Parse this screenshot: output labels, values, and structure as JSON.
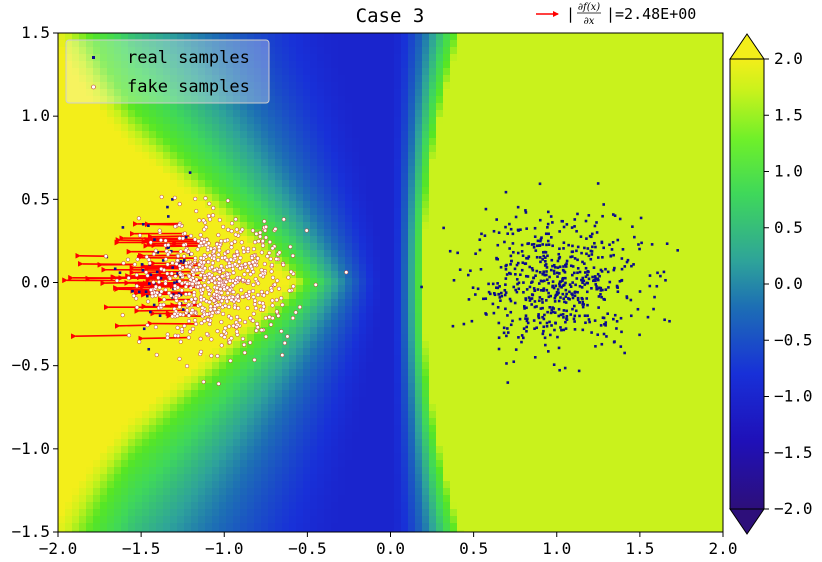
{
  "chart_data": {
    "type": "scatter",
    "title": "Case 3",
    "xlabel": "",
    "ylabel": "",
    "xlim": [
      -2.0,
      2.0
    ],
    "ylim": [
      -1.5,
      1.5
    ],
    "x_ticks": [
      "−2.0",
      "−1.5",
      "−1.0",
      "−0.5",
      "0.0",
      "0.5",
      "1.0",
      "1.5",
      "2.0"
    ],
    "y_ticks": [
      "1.5",
      "1.0",
      "0.5",
      "0.0",
      "−0.5",
      "−1.0",
      "−1.5"
    ],
    "grid": false,
    "legend": {
      "placement": "top-left",
      "entries": [
        "real samples",
        "fake samples"
      ]
    },
    "gradient_annotation": {
      "numerator": "∂f(x)",
      "denominator": "∂x",
      "value_text": "|=2.48E+00",
      "max_gradient_norm": 2.48,
      "color": "#ff0000"
    },
    "colorbar": {
      "range": [
        -2.0,
        2.0
      ],
      "extend": "both",
      "ticks": [
        "2.0",
        "1.5",
        "1.0",
        "0.5",
        "0.0",
        "−0.5",
        "−1.0",
        "−1.5",
        "−2.0"
      ],
      "colormap": "viridis-like (dark indigo → blue → teal → green → yellow)"
    },
    "background_field": {
      "description": "discriminator output f(x,y) over the plane",
      "low_region_center_x": 0.0,
      "low_value": -1.0,
      "high_value_right": 1.7,
      "high_value_far_left": 2.0
    },
    "series": [
      {
        "name": "real samples",
        "marker": "square",
        "color": "#0b0b8c",
        "distribution": {
          "center": [
            1.0,
            0.0
          ],
          "std": [
            0.25,
            0.2
          ],
          "count": 600
        }
      },
      {
        "name": "fake samples",
        "marker": "circle",
        "color": "#ffffff",
        "edge_color": "#c0392b",
        "distribution": {
          "center": [
            -1.05,
            0.0
          ],
          "std": [
            0.22,
            0.18
          ],
          "count": 700
        },
        "gradient_arrows": {
          "direction": "left",
          "length_scale": 0.3,
          "count": 70
        }
      },
      {
        "name": "",
        "marker": "square",
        "color": "#0b0b8c",
        "distribution": {
          "center": [
            -1.35,
            0.0
          ],
          "std": [
            0.12,
            0.2
          ],
          "count": 60
        }
      }
    ]
  }
}
